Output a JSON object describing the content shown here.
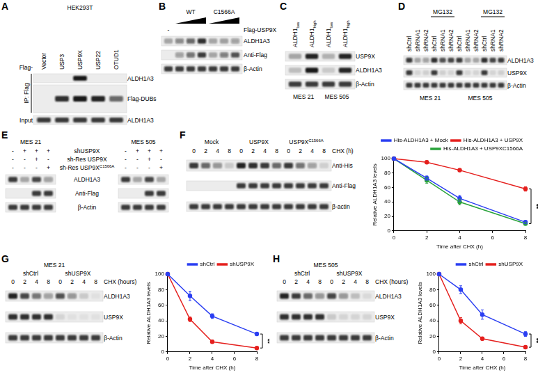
{
  "panels": [
    {
      "label": "A",
      "header": "HEK293T",
      "lane_prefix": "Flag-",
      "lanes": [
        "Vector",
        "USP3",
        "USP9X",
        "USP22",
        "OTUD1"
      ],
      "rows": [
        {
          "name": "ALDH1A3",
          "section": "IP: Flag",
          "bands": [
            0,
            0,
            0.95,
            0,
            0
          ]
        },
        {
          "name": "Flag-DUBs",
          "section": "IP: Flag",
          "bands": [
            0,
            0.85,
            0.95,
            0.9,
            0.6
          ]
        },
        {
          "name": "ALDH1A3",
          "section": "Input",
          "bands": [
            0.8,
            0.8,
            0.8,
            0.8,
            0.8
          ]
        }
      ]
    },
    {
      "label": "B",
      "treatment": {
        "name": "Flag-USP9X",
        "lanes": [
          "-",
          "WT",
          "WT",
          "WT",
          "C1566A",
          "C1566A",
          "C1566A"
        ]
      },
      "rows": [
        {
          "name": "ALDH1A3",
          "bands": [
            0.3,
            0.45,
            0.6,
            0.85,
            0.3,
            0.32,
            0.35
          ]
        },
        {
          "name": "Anti-Flag",
          "bands": [
            0,
            0.35,
            0.55,
            0.8,
            0.3,
            0.5,
            0.7
          ]
        },
        {
          "name": "β-Actin",
          "bands": [
            0.8,
            0.8,
            0.8,
            0.8,
            0.8,
            0.8,
            0.8
          ]
        }
      ]
    },
    {
      "label": "C",
      "lanes": [
        {
          "text": "ALDH1",
          "sub": "low"
        },
        {
          "text": "ALDH1",
          "sub": "high"
        },
        {
          "text": "ALDH1",
          "sub": "low"
        },
        {
          "text": "ALDH1",
          "sub": "high"
        }
      ],
      "groups": [
        "MES 21",
        "MES 21",
        "MES 505",
        "MES 505"
      ],
      "rows": [
        {
          "name": "USP9X",
          "bands": [
            0.3,
            0.9,
            0.25,
            0.9
          ]
        },
        {
          "name": "ALDH1A3",
          "bands": [
            0.2,
            0.95,
            0.15,
            0.9
          ]
        },
        {
          "name": "β-Actin",
          "bands": [
            0.8,
            0.8,
            0.8,
            0.8
          ]
        }
      ]
    },
    {
      "label": "D",
      "treatment": [
        null,
        null,
        null,
        "MG132",
        "MG132",
        "MG132",
        null,
        null,
        null,
        "MG132",
        "MG132",
        "MG132"
      ],
      "lanes": [
        "shCtrl",
        "shRNA1",
        "shRNA2",
        "shCtrl",
        "shRNA1",
        "shRNA2",
        "shCtrl",
        "shRNA1",
        "shRNA2",
        "shCtrl",
        "shRNA1",
        "shRNA2"
      ],
      "groups": [
        "MES 21",
        "MES 21",
        "MES 21",
        "MES 21",
        "MES 21",
        "MES 21",
        "MES 505",
        "MES 505",
        "MES 505",
        "MES 505",
        "MES 505",
        "MES 505"
      ],
      "rows": [
        {
          "name": "ALDH1A3",
          "bands": [
            0.8,
            0.3,
            0.35,
            0.85,
            0.7,
            0.75,
            0.8,
            0.3,
            0.3,
            0.85,
            0.75,
            0.8
          ]
        },
        {
          "name": "USP9X",
          "bands": [
            0.8,
            0.1,
            0.12,
            0.8,
            0.12,
            0.1,
            0.8,
            0.1,
            0.1,
            0.8,
            0.1,
            0.12
          ]
        },
        {
          "name": "β-Actin",
          "bands": [
            0.8,
            0.8,
            0.8,
            0.8,
            0.8,
            0.8,
            0.8,
            0.8,
            0.8,
            0.8,
            0.8,
            0.8
          ]
        }
      ]
    },
    {
      "label": "E",
      "groups": [
        "MES 21",
        "MES 21",
        "MES 21",
        "MES 21",
        "MES 505",
        "MES 505",
        "MES 505",
        "MES 505"
      ],
      "conditions": [
        {
          "name": "shUSP9X",
          "marks": [
            "-",
            "+",
            "+",
            "+",
            "-",
            "+",
            "+",
            "+"
          ]
        },
        {
          "name": "sh-Res USP9X",
          "marks": [
            "-",
            "-",
            "+",
            "-",
            "-",
            "-",
            "+",
            "-"
          ]
        },
        {
          "name": {
            "text": "sh-Res USP9X",
            "sup": "C1566A"
          },
          "marks": [
            "-",
            "-",
            "-",
            "+",
            "-",
            "-",
            "-",
            "+"
          ]
        }
      ],
      "rows": [
        {
          "name": "ALDH1A3",
          "bands": [
            0.8,
            0.3,
            0.75,
            0.35,
            0.8,
            0.3,
            0.75,
            0.3
          ]
        },
        {
          "name": "Anti-Flag",
          "bands": [
            0,
            0,
            0.8,
            0.8,
            0,
            0,
            0.8,
            0.8
          ]
        },
        {
          "name": "β-Actin",
          "bands": [
            0.8,
            0.8,
            0.8,
            0.8,
            0.8,
            0.8,
            0.8,
            0.8
          ]
        }
      ]
    },
    {
      "label": "F",
      "groups": [
        "Mock",
        "Mock",
        "Mock",
        "Mock",
        "USP9X",
        "USP9X",
        "USP9X",
        "USP9X",
        {
          "text": "USP9X",
          "sup": "C1566A"
        },
        {
          "text": "USP9X",
          "sup": "C1566A"
        },
        {
          "text": "USP9X",
          "sup": "C1566A"
        },
        {
          "text": "USP9X",
          "sup": "C1566A"
        }
      ],
      "lanes": [
        "0",
        "2",
        "4",
        "8",
        "0",
        "2",
        "4",
        "8",
        "0",
        "2",
        "4",
        "8"
      ],
      "lanes_name": "CHX (h)",
      "rows": [
        {
          "name": "Anti-His",
          "bands": [
            0.8,
            0.6,
            0.4,
            0.15,
            0.9,
            0.85,
            0.8,
            0.6,
            0.8,
            0.55,
            0.35,
            0.12
          ]
        },
        {
          "name": "Anti-Flag",
          "bands": [
            0,
            0,
            0,
            0,
            0.8,
            0.8,
            0.8,
            0.8,
            0.8,
            0.8,
            0.8,
            0.8
          ]
        },
        {
          "name": "β-actin",
          "bands": [
            0.8,
            0.8,
            0.8,
            0.8,
            0.8,
            0.8,
            0.8,
            0.8,
            0.8,
            0.8,
            0.8,
            0.8
          ]
        }
      ]
    },
    {
      "label": "G",
      "title": "MES 21",
      "groups": [
        "shCtrl",
        "shCtrl",
        "shCtrl",
        "shCtrl",
        "shUSP9X",
        "shUSP9X",
        "shUSP9X",
        "shUSP9X"
      ],
      "lanes": [
        "0",
        "2",
        "4",
        "8",
        "0",
        "2",
        "4",
        "8"
      ],
      "lanes_name": "CHX (hours)",
      "rows": [
        {
          "name": "ALDH1A3",
          "bands": [
            0.9,
            0.75,
            0.55,
            0.35,
            0.7,
            0.4,
            0.15,
            0.05
          ]
        },
        {
          "name": "USP9X",
          "bands": [
            0.85,
            0.85,
            0.85,
            0.85,
            0.1,
            0.05,
            0.05,
            0.05
          ]
        },
        {
          "name": "β-Actin",
          "bands": [
            0.8,
            0.8,
            0.8,
            0.8,
            0.8,
            0.8,
            0.8,
            0.8
          ]
        }
      ]
    },
    {
      "label": "H",
      "title": "MES 505",
      "groups": [
        "shCtrl",
        "shCtrl",
        "shCtrl",
        "shCtrl",
        "shUSP9X",
        "shUSP9X",
        "shUSP9X",
        "shUSP9X"
      ],
      "lanes": [
        "0",
        "2",
        "4",
        "8",
        "0",
        "2",
        "4",
        "8"
      ],
      "lanes_name": "CHX (hours)",
      "rows": [
        {
          "name": "ALDH1A3",
          "bands": [
            0.9,
            0.8,
            0.6,
            0.4,
            0.75,
            0.4,
            0.2,
            0.08
          ]
        },
        {
          "name": "USP9X",
          "bands": [
            0.85,
            0.85,
            0.85,
            0.85,
            0.15,
            0.1,
            0.1,
            0.1
          ]
        },
        {
          "name": "β-Actin",
          "bands": [
            0.8,
            0.8,
            0.8,
            0.8,
            0.8,
            0.8,
            0.8,
            0.8
          ]
        }
      ]
    }
  ],
  "chart_data": [
    {
      "type": "line",
      "x_label": "Time after CHX (h)",
      "y_label": "Relative ALDH1A3 levels",
      "x": [
        0,
        2,
        4,
        8
      ],
      "xlim": [
        0,
        8
      ],
      "xticks": [
        0,
        2,
        4,
        6,
        8
      ],
      "ylim": [
        0,
        100
      ],
      "yticks": [
        0,
        20,
        40,
        60,
        80,
        100
      ],
      "grid": false,
      "legend": "top-right",
      "marker": "circle",
      "series": [
        {
          "name": "His-ALDH1A3 + Mock",
          "color": "#2b3ff2",
          "values": [
            100,
            73,
            45,
            12
          ],
          "errors": [
            0,
            3,
            4,
            2
          ]
        },
        {
          "name": "His-ALDH1A3 + USP9X",
          "color": "#e5201e",
          "values": [
            100,
            95,
            84,
            58
          ],
          "errors": [
            0,
            2,
            2,
            3
          ]
        },
        {
          "name": "His-ALDH1A3 + USP9XC1566A",
          "color": "#2aa33b",
          "values": [
            100,
            70,
            40,
            10
          ],
          "errors": [
            0,
            4,
            4,
            2
          ]
        }
      ],
      "annotations": [
        {
          "text": "**",
          "x": 8
        }
      ]
    },
    {
      "type": "line",
      "x_label": "Time after CHX (h)",
      "y_label": "Relative ALDH1A3 levels",
      "x": [
        0,
        2,
        4,
        8
      ],
      "xlim": [
        0,
        8
      ],
      "xticks": [
        0,
        2,
        4,
        6,
        8
      ],
      "ylim": [
        0,
        100
      ],
      "yticks": [
        0,
        20,
        40,
        60,
        80,
        100
      ],
      "grid": false,
      "legend": "top-right",
      "marker": "circle",
      "series": [
        {
          "name": "shCtrl",
          "color": "#2b3ff2",
          "values": [
            100,
            72,
            46,
            23
          ],
          "errors": [
            0,
            6,
            3,
            2
          ]
        },
        {
          "name": "shUSP9X",
          "color": "#e5201e",
          "values": [
            100,
            42,
            13,
            5
          ],
          "errors": [
            0,
            3,
            2,
            1
          ]
        }
      ],
      "annotations": [
        {
          "text": "**",
          "x": 8
        }
      ]
    },
    {
      "type": "line",
      "x_label": "Time after CHX (h)",
      "y_label": "Relative ALDH1A3 levels",
      "x": [
        0,
        2,
        4,
        8
      ],
      "xlim": [
        0,
        8
      ],
      "xticks": [
        0,
        2,
        4,
        6,
        8
      ],
      "ylim": [
        0,
        100
      ],
      "yticks": [
        0,
        20,
        40,
        60,
        80,
        100
      ],
      "grid": false,
      "legend": "top-right",
      "marker": "circle",
      "series": [
        {
          "name": "shCtrl",
          "color": "#2b3ff2",
          "values": [
            100,
            80,
            48,
            23
          ],
          "errors": [
            0,
            5,
            6,
            3
          ]
        },
        {
          "name": "shUSP9X",
          "color": "#e5201e",
          "values": [
            100,
            40,
            17,
            6
          ],
          "errors": [
            0,
            4,
            2,
            1
          ]
        }
      ],
      "annotations": [
        {
          "text": "**",
          "x": 8
        }
      ]
    }
  ]
}
